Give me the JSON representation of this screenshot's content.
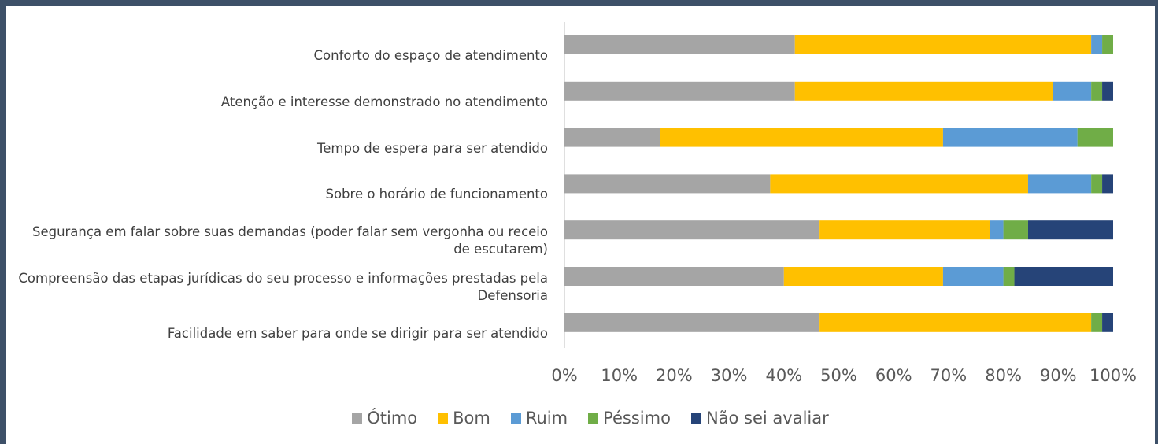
{
  "chart_data": {
    "type": "stacked_barh",
    "categories": [
      "Conforto do espaço de atendimento",
      "Atenção e interesse demonstrado no atendimento",
      "Tempo de espera para ser atendido",
      "Sobre o horário de funcionamento",
      "Segurança em falar sobre suas demandas (poder falar sem vergonha ou receio de escutarem)",
      "Compreensão das etapas jurídicas do seu processo e informações prestadas pela Defensoria",
      "Facilidade em saber para onde se dirigir para ser atendido"
    ],
    "series": [
      {
        "name": "Ótimo",
        "color": "#a5a5a5",
        "values": [
          42,
          42,
          17.5,
          37.5,
          46.5,
          40,
          46.5
        ]
      },
      {
        "name": "Bom",
        "color": "#ffc000",
        "values": [
          54,
          47,
          51.5,
          47,
          31,
          29,
          49.5
        ]
      },
      {
        "name": "Ruim",
        "color": "#5b9bd5",
        "values": [
          2,
          7,
          24.5,
          11.5,
          2.5,
          11,
          0
        ]
      },
      {
        "name": "Péssimo",
        "color": "#70ad47",
        "values": [
          2,
          2,
          6.5,
          2,
          4.5,
          2,
          2
        ]
      },
      {
        "name": "Não sei avaliar",
        "color": "#264478",
        "values": [
          0,
          2,
          0,
          2,
          15.5,
          18,
          2
        ]
      }
    ],
    "xlim": [
      0,
      100
    ],
    "xticks": [
      {
        "value": 0,
        "label": "0%"
      },
      {
        "value": 10,
        "label": "10%"
      },
      {
        "value": 20,
        "label": "20%"
      },
      {
        "value": 30,
        "label": "30%"
      },
      {
        "value": 40,
        "label": "40%"
      },
      {
        "value": 50,
        "label": "50%"
      },
      {
        "value": 60,
        "label": "60%"
      },
      {
        "value": 70,
        "label": "70%"
      },
      {
        "value": 80,
        "label": "80%"
      },
      {
        "value": 90,
        "label": "90%"
      },
      {
        "value": 100,
        "label": "100%"
      }
    ],
    "grid": false,
    "legend": "bottom"
  }
}
